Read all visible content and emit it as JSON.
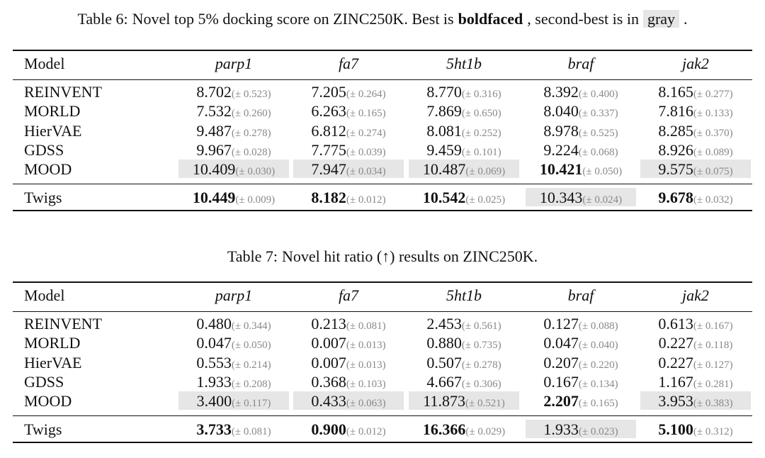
{
  "tables": [
    {
      "caption": [
        {
          "text": "Table 6:"
        },
        {
          "text": "Novel top 5% docking score on ZINC250K. Best is"
        },
        {
          "text": "boldfaced",
          "style": "best"
        },
        {
          "text": ", second-best is in"
        },
        {
          "text": "gray",
          "style": "second"
        },
        {
          "text": "."
        }
      ],
      "columns": [
        "Model",
        "parp1",
        "fa7",
        "5ht1b",
        "braf",
        "jak2"
      ],
      "rows": [
        {
          "model": "REINVENT",
          "cells": [
            {
              "mean": "8.702",
              "std": "(± 0.523)"
            },
            {
              "mean": "7.205",
              "std": "(± 0.264)"
            },
            {
              "mean": "8.770",
              "std": "(± 0.316)"
            },
            {
              "mean": "8.392",
              "std": "(± 0.400)"
            },
            {
              "mean": "8.165",
              "std": "(± 0.277)"
            }
          ]
        },
        {
          "model": "MORLD",
          "cells": [
            {
              "mean": "7.532",
              "std": "(± 0.260)"
            },
            {
              "mean": "6.263",
              "std": "(± 0.165)"
            },
            {
              "mean": "7.869",
              "std": "(± 0.650)"
            },
            {
              "mean": "8.040",
              "std": "(± 0.337)"
            },
            {
              "mean": "7.816",
              "std": "(± 0.133)"
            }
          ]
        },
        {
          "model": "HierVAE",
          "cells": [
            {
              "mean": "9.487",
              "std": "(± 0.278)"
            },
            {
              "mean": "6.812",
              "std": "(± 0.274)"
            },
            {
              "mean": "8.081",
              "std": "(± 0.252)"
            },
            {
              "mean": "8.978",
              "std": "(± 0.525)"
            },
            {
              "mean": "8.285",
              "std": "(± 0.370)"
            }
          ]
        },
        {
          "model": "GDSS",
          "cells": [
            {
              "mean": "9.967",
              "std": "(± 0.028)"
            },
            {
              "mean": "7.775",
              "std": "(± 0.039)"
            },
            {
              "mean": "9.459",
              "std": "(± 0.101)"
            },
            {
              "mean": "9.224",
              "std": "(± 0.068)"
            },
            {
              "mean": "8.926",
              "std": "(± 0.089)"
            }
          ]
        },
        {
          "model": "MOOD",
          "cells": [
            {
              "mean": "10.409",
              "std": "(± 0.030)",
              "style": "second"
            },
            {
              "mean": "7.947",
              "std": "(± 0.034)",
              "style": "second"
            },
            {
              "mean": "10.487",
              "std": "(± 0.069)",
              "style": "second"
            },
            {
              "mean": "10.421",
              "std": "(± 0.050)",
              "style": "best"
            },
            {
              "mean": "9.575",
              "std": "(± 0.075)",
              "style": "second"
            }
          ]
        },
        {
          "model": "Twigs",
          "cells": [
            {
              "mean": "10.449",
              "std": "(± 0.009)",
              "style": "best"
            },
            {
              "mean": "8.182",
              "std": "(± 0.012)",
              "style": "best"
            },
            {
              "mean": "10.542",
              "std": "(± 0.025)",
              "style": "best"
            },
            {
              "mean": "10.343",
              "std": "(± 0.024)",
              "style": "second"
            },
            {
              "mean": "9.678",
              "std": "(± 0.032)",
              "style": "best"
            }
          ]
        }
      ]
    },
    {
      "caption": [
        {
          "text": "Table 7:"
        },
        {
          "text": "Novel hit ratio (↑) results on ZINC250K."
        }
      ],
      "columns": [
        "Model",
        "parp1",
        "fa7",
        "5ht1b",
        "braf",
        "jak2"
      ],
      "rows": [
        {
          "model": "REINVENT",
          "cells": [
            {
              "mean": "0.480",
              "std": "(± 0.344)"
            },
            {
              "mean": "0.213",
              "std": "(± 0.081)"
            },
            {
              "mean": "2.453",
              "std": "(± 0.561)"
            },
            {
              "mean": "0.127",
              "std": "(± 0.088)"
            },
            {
              "mean": "0.613",
              "std": "(± 0.167)"
            }
          ]
        },
        {
          "model": "MORLD",
          "cells": [
            {
              "mean": "0.047",
              "std": "(± 0.050)"
            },
            {
              "mean": "0.007",
              "std": "(± 0.013)"
            },
            {
              "mean": "0.880",
              "std": "(± 0.735)"
            },
            {
              "mean": "0.047",
              "std": "(± 0.040)"
            },
            {
              "mean": "0.227",
              "std": "(± 0.118)"
            }
          ]
        },
        {
          "model": "HierVAE",
          "cells": [
            {
              "mean": "0.553",
              "std": "(± 0.214)"
            },
            {
              "mean": "0.007",
              "std": "(± 0.013)"
            },
            {
              "mean": "0.507",
              "std": "(± 0.278)"
            },
            {
              "mean": "0.207",
              "std": "(± 0.220)"
            },
            {
              "mean": "0.227",
              "std": "(± 0.127)"
            }
          ]
        },
        {
          "model": "GDSS",
          "cells": [
            {
              "mean": "1.933",
              "std": "(± 0.208)"
            },
            {
              "mean": "0.368",
              "std": "(± 0.103)"
            },
            {
              "mean": "4.667",
              "std": "(± 0.306)"
            },
            {
              "mean": "0.167",
              "std": "(± 0.134)"
            },
            {
              "mean": "1.167",
              "std": "(± 0.281)"
            }
          ]
        },
        {
          "model": "MOOD",
          "cells": [
            {
              "mean": "3.400",
              "std": "(± 0.117)",
              "style": "second"
            },
            {
              "mean": "0.433",
              "std": "(± 0.063)",
              "style": "second"
            },
            {
              "mean": "11.873",
              "std": "(± 0.521)",
              "style": "second"
            },
            {
              "mean": "2.207",
              "std": "(± 0.165)",
              "style": "best"
            },
            {
              "mean": "3.953",
              "std": "(± 0.383)",
              "style": "second"
            }
          ]
        },
        {
          "model": "Twigs",
          "cells": [
            {
              "mean": "3.733",
              "std": "(± 0.081)",
              "style": "best"
            },
            {
              "mean": "0.900",
              "std": "(± 0.012)",
              "style": "best"
            },
            {
              "mean": "16.366",
              "std": "(± 0.029)",
              "style": "best"
            },
            {
              "mean": "1.933",
              "std": "(± 0.023)",
              "style": "second"
            },
            {
              "mean": "5.100",
              "std": "(± 0.312)",
              "style": "best"
            }
          ]
        }
      ]
    }
  ]
}
